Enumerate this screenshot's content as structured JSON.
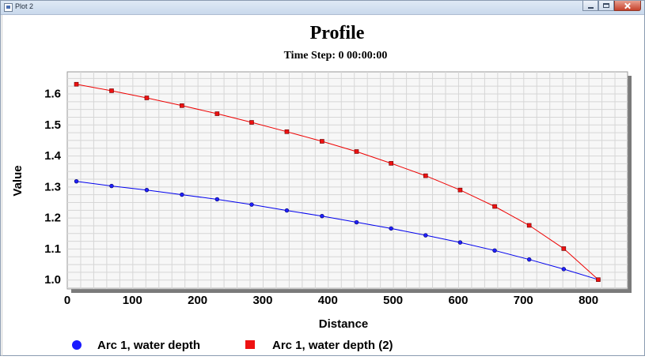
{
  "window": {
    "title": "Plot 2",
    "icon": "app-window-icon",
    "controls": [
      "minimize-icon",
      "maximize-icon",
      "close-icon"
    ]
  },
  "chart_data": {
    "type": "line",
    "title": "Profile",
    "subtitle": "Time Step: 0 00:00:00",
    "xlabel": "Distance",
    "ylabel": "Value",
    "xlim": [
      0,
      860
    ],
    "ylim": [
      0.97,
      1.67
    ],
    "xticks": [
      0,
      100,
      200,
      300,
      400,
      500,
      600,
      700,
      800
    ],
    "yticks": [
      1.0,
      1.1,
      1.2,
      1.3,
      1.4,
      1.5,
      1.6
    ],
    "grid": true,
    "legend_position": "bottom",
    "series": [
      {
        "name": "Arc 1, water depth",
        "color": "#0000ee",
        "marker": "circle",
        "x": [
          14,
          68,
          122,
          176,
          230,
          283,
          337,
          391,
          444,
          497,
          550,
          603,
          656,
          709,
          762,
          815
        ],
        "y": [
          1.317,
          1.302,
          1.289,
          1.274,
          1.259,
          1.242,
          1.223,
          1.205,
          1.185,
          1.165,
          1.143,
          1.12,
          1.094,
          1.065,
          1.034,
          1.0
        ]
      },
      {
        "name": "Arc 1, water depth (2)",
        "color": "#ee0000",
        "marker": "square",
        "x": [
          14,
          68,
          122,
          176,
          230,
          283,
          337,
          391,
          444,
          497,
          550,
          603,
          656,
          709,
          762,
          815
        ],
        "y": [
          1.63,
          1.609,
          1.586,
          1.561,
          1.535,
          1.507,
          1.477,
          1.446,
          1.413,
          1.375,
          1.335,
          1.289,
          1.236,
          1.175,
          1.1,
          1.0
        ]
      }
    ]
  }
}
